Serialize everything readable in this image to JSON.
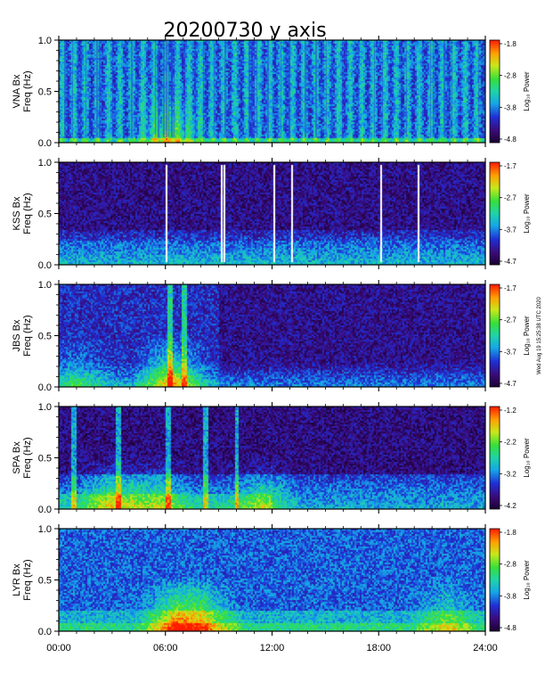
{
  "chart_data": {
    "type": "heatmap",
    "title": "20200730 y axis",
    "xlabel": "",
    "xlim": [
      0,
      24
    ],
    "x_ticks": [
      "00:00",
      "06:00",
      "12:00",
      "18:00",
      "24:00"
    ],
    "ylim": [
      0.0,
      1.0
    ],
    "y_ticks": [
      "0.0",
      "0.5",
      "1.0"
    ],
    "colorbar_label": "Log₁₀ Power",
    "side_note": "Wed Aug 19 15:25:38 UTC 2020",
    "panels": [
      {
        "station": "VNA",
        "ylabel_top": "VNA Bx",
        "ylabel_bottom": "Freq (Hz)",
        "cbar_ticks": [
          "-1.8",
          "-2.8",
          "-3.8",
          "-4.8"
        ],
        "gap_hours": [],
        "spike_hours": [],
        "low_freq_bursts": [
          {
            "hour": 6.2,
            "strength": 0.6
          }
        ]
      },
      {
        "station": "KSS",
        "ylabel_top": "KSS Bx",
        "ylabel_bottom": "Freq (Hz)",
        "cbar_ticks": [
          "-1.7",
          "-2.7",
          "-3.7",
          "-4.7"
        ],
        "gap_hours": [
          6.0,
          9.1,
          9.25,
          12.1,
          13.1,
          18.1,
          20.2
        ],
        "spike_hours": [],
        "low_freq_bursts": []
      },
      {
        "station": "JBS",
        "ylabel_top": "JBS Bx",
        "ylabel_bottom": "Freq (Hz)",
        "cbar_ticks": [
          "-1.7",
          "-2.7",
          "-3.7",
          "-4.7"
        ],
        "gap_hours": [],
        "spike_hours": [
          6.2,
          7.0
        ],
        "low_freq_bursts": [
          {
            "hour": 6.3,
            "strength": 1.0
          },
          {
            "hour": 1.0,
            "strength": 0.4
          }
        ]
      },
      {
        "station": "SPA",
        "ylabel_top": "SPA Bx",
        "ylabel_bottom": "Freq (Hz)",
        "cbar_ticks": [
          "-1.2",
          "-2.2",
          "-3.2",
          "-4.2"
        ],
        "gap_hours": [],
        "spike_hours": [
          0.8,
          3.3,
          6.1,
          8.2,
          10.0
        ],
        "low_freq_bursts": [
          {
            "hour": 2.9,
            "strength": 0.7
          },
          {
            "hour": 5.5,
            "strength": 0.6
          },
          {
            "hour": 11.5,
            "strength": 0.5
          }
        ]
      },
      {
        "station": "LYR",
        "ylabel_top": "LYR Bx",
        "ylabel_bottom": "Freq (Hz)",
        "cbar_ticks": [
          "-1.8",
          "-2.8",
          "-3.8",
          "-4.8"
        ],
        "gap_hours": [],
        "spike_hours": [],
        "low_freq_bursts": [
          {
            "hour": 6.5,
            "strength": 1.0
          },
          {
            "hour": 8.2,
            "strength": 0.8
          },
          {
            "hour": 21.8,
            "strength": 0.6
          }
        ]
      }
    ]
  }
}
